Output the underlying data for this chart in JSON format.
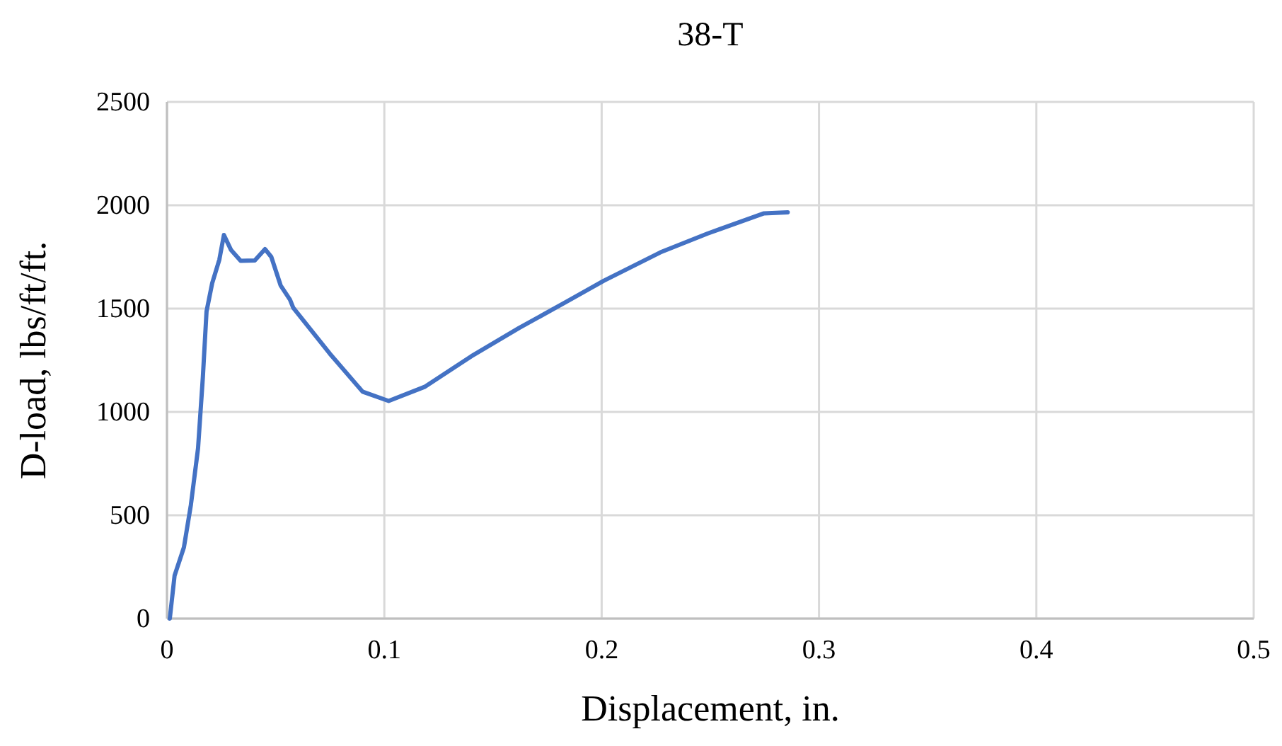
{
  "chart_data": {
    "type": "line",
    "title": "38-T",
    "xlabel": "Displacement, in.",
    "ylabel": "D-load, lbs/ft/ft.",
    "xlim": [
      0,
      0.5
    ],
    "xticks": [
      0,
      0.1,
      0.2,
      0.3,
      0.4,
      0.5
    ],
    "ylim": [
      0,
      2500
    ],
    "yticks": [
      0,
      500,
      1000,
      1500,
      2000,
      2500
    ],
    "grid": true,
    "series": [
      {
        "color": "#4472c4",
        "x": [
          0.0013,
          0.0035,
          0.0078,
          0.011,
          0.0143,
          0.0165,
          0.0182,
          0.0208,
          0.0241,
          0.0262,
          0.0295,
          0.0339,
          0.0404,
          0.0451,
          0.048,
          0.0523,
          0.0566,
          0.0581,
          0.075,
          0.09,
          0.102,
          0.1185,
          0.14,
          0.162,
          0.1836,
          0.201,
          0.227,
          0.2487,
          0.2747,
          0.2856
        ],
        "values": [
          0,
          208,
          345,
          550,
          824,
          1166,
          1486,
          1623,
          1737,
          1856,
          1783,
          1731,
          1733,
          1788,
          1750,
          1612,
          1543,
          1504,
          1281,
          1098,
          1053,
          1121,
          1269,
          1406,
          1532,
          1635,
          1772,
          1863,
          1961,
          1966
        ]
      }
    ]
  }
}
